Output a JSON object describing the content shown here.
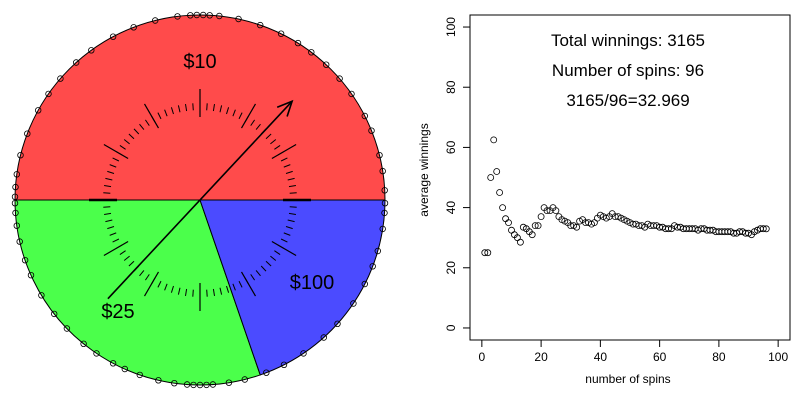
{
  "chart_data": [
    {
      "type": "pie",
      "title": "",
      "slices": [
        {
          "label": "$10",
          "start_deg": 0,
          "end_deg": 180,
          "color": "#ff4b4b"
        },
        {
          "label": "$25",
          "start_deg": 180,
          "end_deg": 289,
          "color": "#4bff4b"
        },
        {
          "label": "$100",
          "start_deg": 289,
          "end_deg": 360,
          "color": "#4b4bff"
        }
      ],
      "pointer_angle_deg": 47,
      "dial_major_ticks": 12,
      "dial_minor_ticks": 84
    },
    {
      "type": "scatter",
      "title": "",
      "xlabel": "number of spins",
      "ylabel": "average winnings",
      "xlim": [
        -4,
        104
      ],
      "ylim": [
        -4,
        104
      ],
      "xticks": [
        0,
        20,
        40,
        60,
        80,
        100
      ],
      "yticks": [
        0,
        20,
        40,
        60,
        80,
        100
      ],
      "x": [
        1,
        2,
        3,
        4,
        5,
        6,
        7,
        8,
        9,
        10,
        11,
        12,
        13,
        14,
        15,
        16,
        17,
        18,
        19,
        20,
        21,
        22,
        23,
        24,
        25,
        26,
        27,
        28,
        29,
        30,
        31,
        32,
        33,
        34,
        35,
        36,
        37,
        38,
        39,
        40,
        41,
        42,
        43,
        44,
        45,
        46,
        47,
        48,
        49,
        50,
        51,
        52,
        53,
        54,
        55,
        56,
        57,
        58,
        59,
        60,
        61,
        62,
        63,
        64,
        65,
        66,
        67,
        68,
        69,
        70,
        71,
        72,
        73,
        74,
        75,
        76,
        77,
        78,
        79,
        80,
        81,
        82,
        83,
        84,
        85,
        86,
        87,
        88,
        89,
        90,
        91,
        92,
        93,
        94,
        95,
        96
      ],
      "y": [
        25,
        25,
        50,
        62.5,
        52,
        45,
        40,
        36.3,
        35,
        32.5,
        31,
        30,
        28.5,
        33.5,
        33,
        32,
        31,
        34,
        34,
        37,
        40,
        39,
        39,
        40,
        39,
        37,
        36,
        35.5,
        35,
        34,
        34,
        33.5,
        35.5,
        36,
        35,
        35,
        34.5,
        35,
        36.5,
        37.5,
        37,
        36.5,
        37,
        38,
        37,
        37,
        36.5,
        36,
        35.5,
        35,
        34.5,
        34.5,
        34,
        34,
        33.5,
        34.5,
        34,
        34,
        34,
        33.5,
        33.5,
        33,
        33,
        33,
        34,
        33.5,
        33.5,
        33,
        33,
        33,
        33,
        33,
        32.5,
        33,
        33,
        32.5,
        32.5,
        32.5,
        32,
        32,
        32,
        32,
        32,
        32,
        31.5,
        31.5,
        32,
        32,
        31.5,
        31.5,
        31,
        32,
        32.5,
        33,
        33,
        32.969
      ]
    }
  ],
  "annotations": {
    "total": "Total winnings: 3165",
    "spins": "Number of spins: 96",
    "ratio": "3165/96=32.969"
  }
}
